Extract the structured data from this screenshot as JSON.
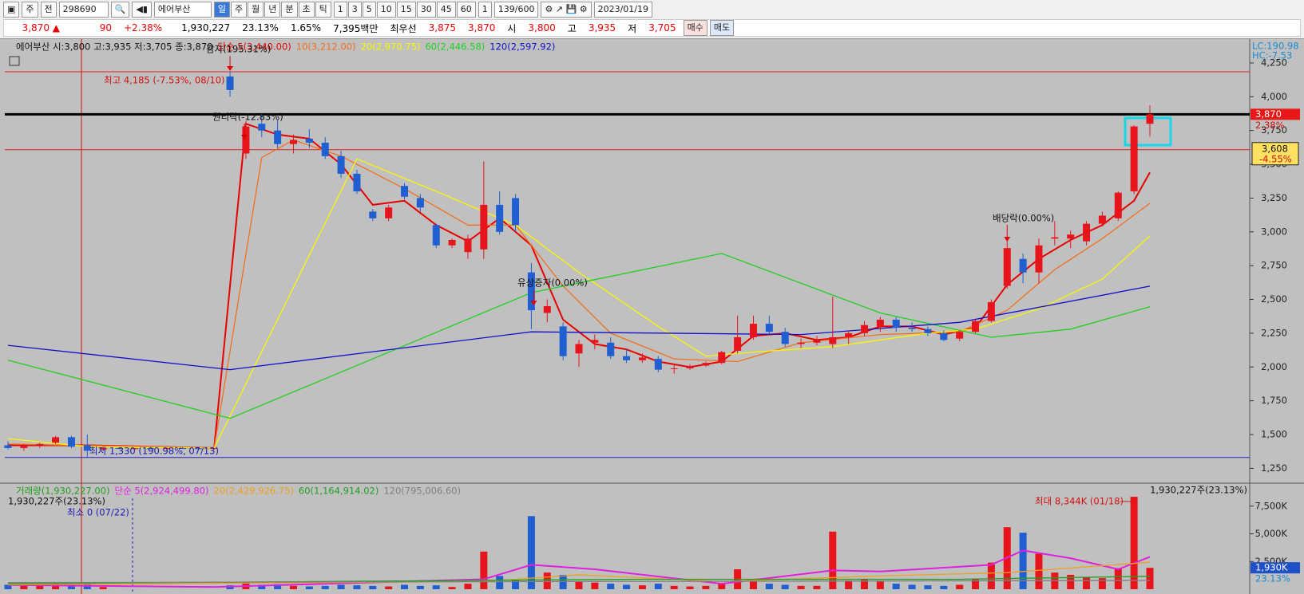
{
  "toolbar": {
    "market": "주",
    "prev": "전",
    "code": "298690",
    "name": "에어부산",
    "periods": [
      "일",
      "주",
      "월",
      "년",
      "분",
      "초",
      "틱"
    ],
    "intervals": [
      "1",
      "3",
      "5",
      "10",
      "15",
      "30",
      "45",
      "60"
    ],
    "unit": "1",
    "count": "139/600",
    "date": "2023/01/19"
  },
  "quote_bar": {
    "price": "3,870 ▲",
    "change": "90",
    "change_pct": "+2.38%",
    "volume": "1,930,227",
    "volume_pct": "23.13%",
    "turnover_pct": "1.65%",
    "amount": "7,395백만",
    "best_label": "최우선",
    "ask": "3,875",
    "bid": "3,870",
    "open_label": "시",
    "open": "3,800",
    "high_label": "고",
    "high": "3,935",
    "low_label": "저",
    "low": "3,705",
    "buy": "매수",
    "sell": "매도"
  },
  "chart_data": [
    {
      "type": "candlestick",
      "header": "에어부산 시:3,800 고:3,935 저:3,705 종:3,870",
      "open": [
        1420,
        1400,
        1420,
        1440,
        1480,
        1420,
        1390,
        1400,
        1395,
        1398,
        1395,
        1400,
        1398,
        1395,
        4150,
        3580,
        3800,
        3750,
        3650,
        3690,
        3660,
        3560,
        3430,
        3150,
        3100,
        3340,
        3250,
        3050,
        2900,
        2850,
        2870,
        3200,
        3250,
        2700,
        2400,
        2300,
        2100,
        2180,
        2180,
        2080,
        2050,
        2060,
        1990,
        1990,
        2010,
        2030,
        2120,
        2220,
        2320,
        2260,
        2170,
        2180,
        2170,
        2220,
        2250,
        2300,
        2350,
        2290,
        2280,
        2250,
        2210,
        2260,
        2340,
        2600,
        2800,
        2700,
        2950,
        2950,
        2930,
        3060,
        3100,
        3300,
        3800
      ],
      "high": [
        1450,
        1430,
        1440,
        1490,
        1490,
        1500,
        1410,
        1405,
        1400,
        1402,
        1400,
        1405,
        1402,
        1400,
        4185,
        3820,
        3870,
        3830,
        3720,
        3760,
        3700,
        3600,
        3460,
        3170,
        3200,
        3360,
        3280,
        3060,
        2950,
        2980,
        3520,
        3300,
        3280,
        2770,
        2500,
        2330,
        2200,
        2240,
        2220,
        2130,
        2100,
        2080,
        2020,
        2020,
        2040,
        2120,
        2380,
        2380,
        2380,
        2290,
        2210,
        2230,
        2520,
        2270,
        2340,
        2370,
        2370,
        2330,
        2300,
        2270,
        2270,
        2350,
        2500,
        2950,
        2840,
        2950,
        3080,
        3010,
        3080,
        3150,
        3300,
        3790,
        3935
      ],
      "low": [
        1390,
        1380,
        1400,
        1430,
        1400,
        1330,
        1380,
        1390,
        1390,
        1392,
        1390,
        1393,
        1392,
        1390,
        4000,
        3540,
        3700,
        3620,
        3580,
        3620,
        3540,
        3400,
        3280,
        3080,
        3080,
        3240,
        3150,
        2880,
        2880,
        2800,
        2800,
        2980,
        3000,
        2280,
        2330,
        2050,
        2000,
        2130,
        2060,
        2030,
        2030,
        1960,
        1950,
        1980,
        2000,
        2020,
        2100,
        2200,
        2240,
        2150,
        2140,
        2160,
        2140,
        2170,
        2230,
        2260,
        2260,
        2260,
        2230,
        2190,
        2190,
        2250,
        2330,
        2580,
        2620,
        2620,
        2900,
        2880,
        2900,
        3040,
        3080,
        3280,
        3705
      ],
      "close": [
        1400,
        1420,
        1430,
        1480,
        1410,
        1380,
        1400,
        1395,
        1398,
        1395,
        1400,
        1398,
        1395,
        1400,
        4050,
        3780,
        3750,
        3650,
        3680,
        3660,
        3560,
        3430,
        3300,
        3100,
        3180,
        3260,
        3180,
        2900,
        2940,
        2950,
        3200,
        3000,
        3050,
        2420,
        2450,
        2080,
        2170,
        2200,
        2080,
        2050,
        2070,
        1980,
        1990,
        2000,
        2030,
        2110,
        2220,
        2320,
        2260,
        2170,
        2180,
        2200,
        2220,
        2250,
        2310,
        2350,
        2290,
        2280,
        2250,
        2200,
        2260,
        2340,
        2480,
        2880,
        2700,
        2900,
        2960,
        2980,
        3060,
        3120,
        3290,
        3780,
        3870
      ],
      "up_color": "#e8141c",
      "down_color": "#1f5fd1",
      "ylim": [
        1140,
        4415
      ],
      "yticks": [
        {
          "value": 1250,
          "label": "1,250"
        },
        {
          "value": 1500,
          "label": "1,500"
        },
        {
          "value": 1750,
          "label": "1,750"
        },
        {
          "value": 2000,
          "label": "2,000"
        },
        {
          "value": 2250,
          "label": "2,250"
        },
        {
          "value": 2500,
          "label": "2,500"
        },
        {
          "value": 2750,
          "label": "2,750"
        },
        {
          "value": 3000,
          "label": "3,000"
        },
        {
          "value": 3250,
          "label": "3,250"
        },
        {
          "value": 3500,
          "label": "3,500"
        },
        {
          "value": 3750,
          "label": "3,750"
        },
        {
          "value": 4000,
          "label": "4,000"
        },
        {
          "value": 4250,
          "label": "4,250"
        }
      ],
      "lines": [
        {
          "name": "단순 5(3,440.00)",
          "color": "#e80000",
          "x": [
            0,
            5,
            13,
            15,
            17,
            19,
            21,
            23,
            25,
            27,
            29,
            31,
            33,
            35,
            37,
            39,
            41,
            43,
            45,
            47,
            49,
            51,
            53,
            55,
            57,
            59,
            61,
            63,
            65,
            67,
            69,
            71,
            72
          ],
          "values": [
            1420,
            1420,
            1400,
            3800,
            3720,
            3690,
            3500,
            3200,
            3230,
            3050,
            2930,
            3100,
            2900,
            2350,
            2170,
            2130,
            2040,
            2000,
            2040,
            2230,
            2250,
            2200,
            2220,
            2300,
            2300,
            2240,
            2290,
            2610,
            2800,
            2940,
            3050,
            3230,
            3440
          ]
        },
        {
          "name": "10(3,212.00)",
          "color": "#f07020",
          "x": [
            0,
            13,
            16,
            18,
            21,
            25,
            29,
            32,
            35,
            38,
            42,
            46,
            50,
            55,
            60,
            63,
            66,
            69,
            72
          ],
          "values": [
            1430,
            1400,
            3550,
            3680,
            3560,
            3320,
            3050,
            3050,
            2600,
            2250,
            2060,
            2040,
            2180,
            2240,
            2260,
            2420,
            2720,
            2950,
            3212
          ]
        },
        {
          "name": "20(2,970.75)",
          "color": "#f8f800",
          "x": [
            0,
            5,
            13,
            22,
            27,
            32,
            36,
            41,
            44,
            47,
            52,
            58,
            61,
            65,
            69,
            72
          ],
          "values": [
            1470,
            1410,
            1400,
            3540,
            3300,
            3050,
            2700,
            2300,
            2080,
            2110,
            2150,
            2250,
            2280,
            2430,
            2650,
            2970
          ]
        },
        {
          "name": "60(2,446.58)",
          "color": "#20d020",
          "x": [
            0,
            14,
            33,
            45,
            55,
            62,
            67,
            72
          ],
          "values": [
            2050,
            1620,
            2550,
            2840,
            2400,
            2220,
            2280,
            2446
          ]
        },
        {
          "name": "120(2,597.92)",
          "color": "#1010c8",
          "x": [
            0,
            14,
            33,
            50,
            60,
            72
          ],
          "values": [
            2160,
            1980,
            2260,
            2240,
            2330,
            2598
          ]
        }
      ],
      "reference_lines": [
        {
          "value": 4185,
          "color": "#e02020"
        },
        {
          "value": 3870,
          "color": "#000000"
        },
        {
          "value": 3608,
          "color": "#e02020"
        },
        {
          "value": 1330,
          "color": "#2020c0"
        }
      ],
      "annotations": [
        "최고 4,185 (-7.53%, 08/10)",
        "최저 1,330 (190.98%, 07/13)",
        "감자(195.31%)",
        "권리락(-12.83%)",
        "유상증자(0.00%)",
        "배당락(0.00%)"
      ],
      "price_labels": [
        "3,870",
        "2.38%",
        "3,608",
        "-4.55%"
      ],
      "corner_labels": [
        "LC:190.98",
        "HC:-7.53"
      ]
    },
    {
      "type": "bar",
      "header": "거래량(1,930,227.00)",
      "header_color": "#20a020",
      "values": [
        400000,
        300000,
        350000,
        500000,
        450000,
        600000,
        200000,
        0,
        0,
        0,
        0,
        0,
        0,
        0,
        350000,
        600000,
        400000,
        450000,
        300000,
        250000,
        300000,
        400000,
        350000,
        300000,
        250000,
        400000,
        300000,
        350000,
        200000,
        500000,
        3400000,
        1200000,
        900000,
        6600000,
        1500000,
        1300000,
        700000,
        600000,
        500000,
        400000,
        350000,
        500000,
        300000,
        250000,
        300000,
        500000,
        1800000,
        900000,
        500000,
        400000,
        300000,
        300000,
        5200000,
        800000,
        900000,
        700000,
        500000,
        400000,
        350000,
        300000,
        400000,
        900000,
        2400000,
        5600000,
        5100000,
        3200000,
        1500000,
        1300000,
        1100000,
        1000000,
        1900000,
        8344000,
        1930227
      ],
      "ylim": [
        0,
        9500000
      ],
      "yticks": [
        {
          "value": 2500000,
          "label": "2,500K"
        },
        {
          "value": 5000000,
          "label": "5,000K"
        },
        {
          "value": 7500000,
          "label": "7,500K"
        }
      ],
      "lines": [
        {
          "name": "단순 5(2,924,499.80)",
          "color": "#e020e0",
          "x": [
            0,
            13,
            30,
            33,
            37,
            45,
            52,
            55,
            62,
            64,
            67,
            70,
            72
          ],
          "values": [
            380000,
            200000,
            900000,
            2200000,
            1800000,
            500000,
            1700000,
            1600000,
            2200000,
            3500000,
            2800000,
            1800000,
            2924500
          ]
        },
        {
          "name": "20(2,429,926.75)",
          "color": "#f0a020",
          "x": [
            0,
            30,
            36,
            45,
            55,
            63,
            72
          ],
          "values": [
            400000,
            700000,
            1300000,
            700000,
            1200000,
            1500000,
            2429927
          ]
        },
        {
          "name": "60(1,164,914.02)",
          "color": "#20a020",
          "x": [
            0,
            40,
            60,
            72
          ],
          "values": [
            500000,
            900000,
            900000,
            1164914
          ]
        },
        {
          "name": "120(795,006.60)",
          "color": "#808080",
          "x": [
            0,
            72
          ],
          "values": [
            600000,
            795007
          ]
        }
      ],
      "annotations": [
        "최대 8,344K (01/18)",
        "최소 0 (07/22)",
        "1,930,227주(23.13%)"
      ],
      "right_title": "1,930,227주(23.13%)",
      "price_labels": [
        "1,930K",
        "23.13%"
      ]
    }
  ]
}
